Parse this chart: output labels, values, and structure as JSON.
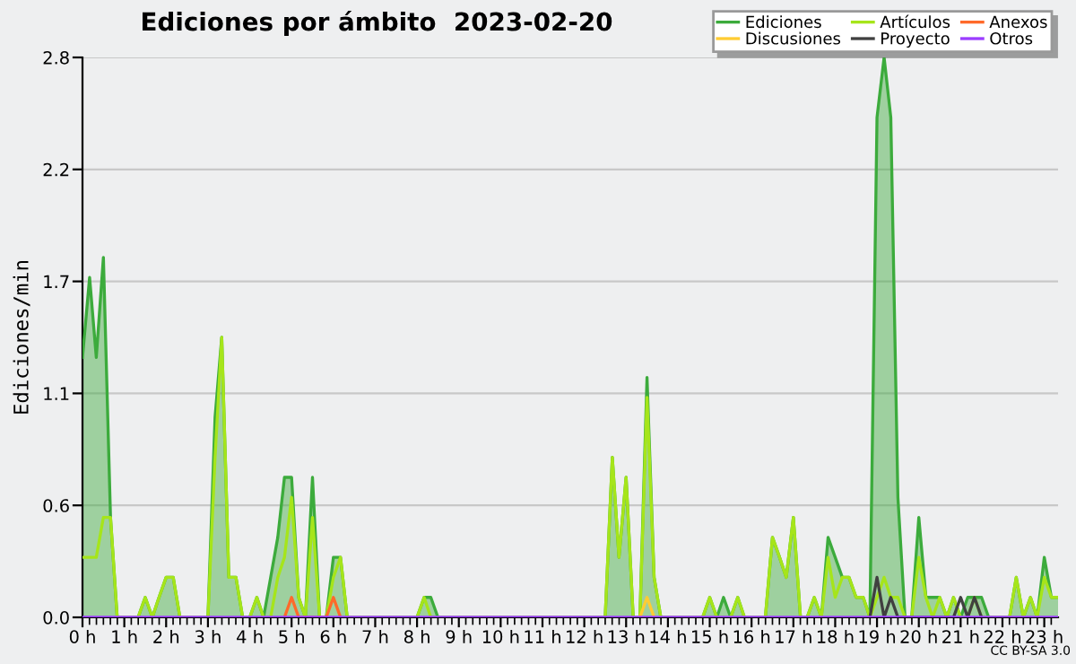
{
  "chart_data": {
    "type": "line",
    "title": "Ediciones por ámbito  2023-02-20",
    "ylabel": "Ediciones/min",
    "annotations": [
      "CC BY-SA 3.0"
    ],
    "x": [
      0,
      0.17,
      0.33,
      0.5,
      0.67,
      0.83,
      1,
      1.17,
      1.33,
      1.5,
      1.67,
      1.83,
      2,
      2.17,
      2.33,
      2.5,
      2.67,
      2.83,
      3,
      3.17,
      3.33,
      3.5,
      3.67,
      3.83,
      4,
      4.17,
      4.33,
      4.5,
      4.67,
      4.83,
      5,
      5.17,
      5.33,
      5.5,
      5.67,
      5.83,
      6,
      6.17,
      6.33,
      6.5,
      6.67,
      6.83,
      7,
      7.17,
      7.33,
      7.5,
      7.67,
      7.83,
      8,
      8.17,
      8.33,
      8.5,
      8.67,
      8.83,
      9,
      9.17,
      9.33,
      9.5,
      9.67,
      9.83,
      10,
      10.17,
      10.33,
      10.5,
      10.67,
      10.83,
      11,
      11.17,
      11.33,
      11.5,
      11.67,
      11.83,
      12,
      12.17,
      12.33,
      12.5,
      12.67,
      12.83,
      13,
      13.17,
      13.33,
      13.5,
      13.67,
      13.83,
      14,
      14.17,
      14.33,
      14.5,
      14.67,
      14.83,
      15,
      15.17,
      15.33,
      15.5,
      15.67,
      15.83,
      16,
      16.17,
      16.33,
      16.5,
      16.67,
      16.83,
      17,
      17.17,
      17.33,
      17.5,
      17.67,
      17.83,
      18,
      18.17,
      18.33,
      18.5,
      18.67,
      18.83,
      19,
      19.17,
      19.33,
      19.5,
      19.67,
      19.83,
      20,
      20.17,
      20.33,
      20.5,
      20.67,
      20.83,
      21,
      21.17,
      21.33,
      21.5,
      21.67,
      21.83,
      22,
      22.17,
      22.33,
      22.5,
      22.67,
      22.83,
      23,
      23.17,
      23.33
    ],
    "series": [
      {
        "name": "Ediciones",
        "type": "area",
        "color": "#3cab3c",
        "values": [
          1.3,
          1.7,
          1.3,
          1.8,
          0.5,
          0,
          0,
          0,
          0,
          0.1,
          0,
          0.1,
          0.2,
          0.2,
          0,
          0,
          0,
          0,
          0,
          1.0,
          1.4,
          0.2,
          0.2,
          0,
          0,
          0.1,
          0,
          0.2,
          0.4,
          0.7,
          0.7,
          0.1,
          0,
          0.7,
          0,
          0,
          0.3,
          0.3,
          0,
          0,
          0,
          0,
          0,
          0,
          0,
          0,
          0,
          0,
          0,
          0.1,
          0.1,
          0,
          0,
          0,
          0,
          0,
          0,
          0,
          0,
          0,
          0,
          0,
          0,
          0,
          0,
          0,
          0,
          0,
          0,
          0,
          0,
          0,
          0,
          0,
          0,
          0,
          0.8,
          0.3,
          0.7,
          0,
          0,
          1.2,
          0.2,
          0,
          0,
          0,
          0,
          0,
          0,
          0,
          0.1,
          0,
          0.1,
          0,
          0.1,
          0,
          0,
          0,
          0,
          0.4,
          0.3,
          0.2,
          0.5,
          0,
          0,
          0.1,
          0,
          0.4,
          0.3,
          0.2,
          0.2,
          0.1,
          0.1,
          0,
          2.5,
          2.8,
          2.5,
          0.6,
          0,
          0,
          0.5,
          0.1,
          0.1,
          0.1,
          0,
          0.1,
          0,
          0.1,
          0.1,
          0.1,
          0,
          0,
          0,
          0,
          0.2,
          0,
          0.1,
          0,
          0.3,
          0.1,
          0.1
        ]
      },
      {
        "name": "Artículos",
        "color": "#a6e51a",
        "values": [
          0.3,
          0.3,
          0.3,
          0.5,
          0.5,
          0,
          0,
          0,
          0,
          0.1,
          0,
          0.1,
          0.2,
          0.2,
          0,
          0,
          0,
          0,
          0,
          0.8,
          1.4,
          0.2,
          0.2,
          0,
          0,
          0.1,
          0,
          0,
          0.2,
          0.3,
          0.6,
          0.1,
          0,
          0.5,
          0,
          0,
          0.2,
          0.3,
          0,
          0,
          0,
          0,
          0,
          0,
          0,
          0,
          0,
          0,
          0,
          0.1,
          0,
          0,
          0,
          0,
          0,
          0,
          0,
          0,
          0,
          0,
          0,
          0,
          0,
          0,
          0,
          0,
          0,
          0,
          0,
          0,
          0,
          0,
          0,
          0,
          0,
          0,
          0.8,
          0.3,
          0.7,
          0,
          0,
          1.1,
          0.2,
          0,
          0,
          0,
          0,
          0,
          0,
          0,
          0.1,
          0,
          0,
          0,
          0.1,
          0,
          0,
          0,
          0,
          0.4,
          0.3,
          0.2,
          0.5,
          0,
          0,
          0.1,
          0,
          0.3,
          0.1,
          0.2,
          0.2,
          0.1,
          0.1,
          0,
          0.1,
          0.2,
          0.1,
          0.1,
          0,
          0,
          0.3,
          0.1,
          0,
          0.1,
          0,
          0.1,
          0,
          0,
          0.1,
          0,
          0,
          0,
          0,
          0,
          0.2,
          0,
          0.1,
          0,
          0.2,
          0.1,
          0.1
        ]
      },
      {
        "name": "Anexos",
        "color": "#ff6a2a",
        "x": [
          4.83,
          5,
          5.17,
          5.83,
          6,
          6.17
        ],
        "values": [
          0,
          0.1,
          0,
          0,
          0.1,
          0
        ]
      },
      {
        "name": "Discusiones",
        "color": "#ffcc33",
        "x": [
          13.33,
          13.5,
          13.67
        ],
        "values": [
          0,
          0.1,
          0
        ]
      },
      {
        "name": "Proyecto",
        "color": "#404040",
        "x": [
          18.83,
          19,
          19.17,
          19.33,
          19.5,
          20.83,
          21,
          21.17,
          21.33,
          21.5
        ],
        "values": [
          0,
          0.2,
          0,
          0.1,
          0,
          0,
          0.1,
          0,
          0.1,
          0
        ]
      },
      {
        "name": "Otros",
        "color": "#9b3dff",
        "x": [
          0,
          23.33
        ],
        "values": [
          0,
          0
        ]
      }
    ],
    "xlim": [
      0,
      23.33
    ],
    "xticks": [
      {
        "value": 0,
        "label": "0 h"
      },
      {
        "value": 1,
        "label": "1 h"
      },
      {
        "value": 2,
        "label": "2 h"
      },
      {
        "value": 3,
        "label": "3 h"
      },
      {
        "value": 4,
        "label": "4 h"
      },
      {
        "value": 5,
        "label": "5 h"
      },
      {
        "value": 6,
        "label": "6 h"
      },
      {
        "value": 7,
        "label": "7 h"
      },
      {
        "value": 8,
        "label": "8 h"
      },
      {
        "value": 9,
        "label": "9 h"
      },
      {
        "value": 10,
        "label": "10 h"
      },
      {
        "value": 11,
        "label": "11 h"
      },
      {
        "value": 12,
        "label": "12 h"
      },
      {
        "value": 13,
        "label": "13 h"
      },
      {
        "value": 14,
        "label": "14 h"
      },
      {
        "value": 15,
        "label": "15 h"
      },
      {
        "value": 16,
        "label": "16 h"
      },
      {
        "value": 17,
        "label": "17 h"
      },
      {
        "value": 18,
        "label": "18 h"
      },
      {
        "value": 19,
        "label": "19 h"
      },
      {
        "value": 20,
        "label": "20 h"
      },
      {
        "value": 21,
        "label": "21 h"
      },
      {
        "value": 22,
        "label": "22 h"
      },
      {
        "value": 23,
        "label": "23 h"
      }
    ],
    "ylim": [
      0,
      2.8
    ],
    "yticks": [
      {
        "value": 0,
        "label": "0.0"
      },
      {
        "value": 0.56,
        "label": "0.6"
      },
      {
        "value": 1.12,
        "label": "1.1"
      },
      {
        "value": 1.68,
        "label": "1.7"
      },
      {
        "value": 2.24,
        "label": "2.2"
      },
      {
        "value": 2.8,
        "label": "2.8"
      }
    ],
    "grid": "y",
    "legend": "top right"
  }
}
